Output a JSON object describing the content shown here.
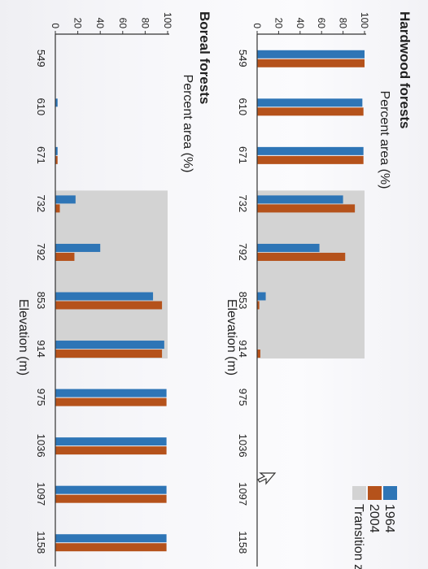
{
  "colors": {
    "series_1964": "#2e75b6",
    "series_2004": "#b5521b",
    "transition_zone": "#d3d3d3",
    "axis": "#333333"
  },
  "legend": {
    "items": [
      "1964",
      "2004",
      "Transition zone"
    ]
  },
  "chart_data": [
    {
      "type": "bar",
      "title": "Hardwood forests",
      "xlabel": "Elevation (m)",
      "ylabel": "Percent area (%)",
      "ylim": [
        0,
        100
      ],
      "yticks": [
        0,
        20,
        40,
        60,
        80,
        100
      ],
      "categories": [
        "549",
        "610",
        "671",
        "732",
        "792",
        "853",
        "914",
        "975",
        "1036",
        "1097",
        "1158"
      ],
      "series": [
        {
          "name": "1964",
          "values": [
            100,
            98,
            99,
            80,
            58,
            8,
            0,
            0,
            0,
            0,
            0
          ]
        },
        {
          "name": "2004",
          "values": [
            100,
            99,
            99,
            91,
            82,
            2,
            3,
            0,
            0,
            0,
            0
          ]
        }
      ],
      "transition_zone": {
        "from": "732",
        "to": "914"
      }
    },
    {
      "type": "bar",
      "title": "Boreal forests",
      "xlabel": "Elevation (m)",
      "ylabel": "Percent area (%)",
      "ylim": [
        0,
        100
      ],
      "yticks": [
        0,
        20,
        40,
        60,
        80,
        100
      ],
      "categories": [
        "549",
        "610",
        "671",
        "732",
        "792",
        "853",
        "914",
        "975",
        "1036",
        "1097",
        "1158"
      ],
      "series": [
        {
          "name": "1964",
          "values": [
            0,
            2,
            2,
            18,
            40,
            87,
            97,
            99,
            99,
            99,
            99
          ]
        },
        {
          "name": "2004",
          "values": [
            0,
            0,
            2,
            4,
            17,
            95,
            95,
            99,
            99,
            99,
            99
          ]
        }
      ],
      "transition_zone": {
        "from": "732",
        "to": "914"
      }
    }
  ]
}
